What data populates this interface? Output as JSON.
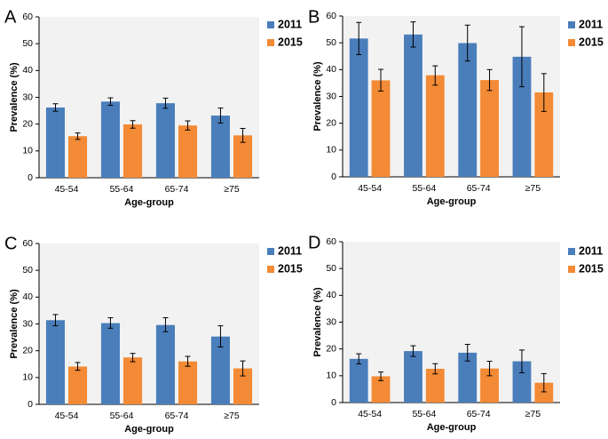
{
  "colors": {
    "2011": "#4A7EBB",
    "2015": "#F38A35"
  },
  "chart_data": [
    {
      "panel": "A",
      "type": "bar",
      "categories": [
        "45-54",
        "55-64",
        "65-74",
        "≥75"
      ],
      "xlabel": "Age-group",
      "ylabel": "Prevalence (%)",
      "ylim": [
        0,
        60
      ],
      "yticks": [
        "0",
        "10",
        "20",
        "30",
        "40",
        "50",
        "60"
      ],
      "legend": "top-right",
      "series": [
        {
          "name": "2011",
          "values": [
            26.2,
            28.4,
            27.8,
            23.2
          ],
          "err_low": [
            24.8,
            27.0,
            25.9,
            20.4
          ],
          "err_high": [
            27.6,
            29.8,
            29.7,
            26.0
          ]
        },
        {
          "name": "2015",
          "values": [
            15.5,
            19.9,
            19.5,
            15.8
          ],
          "err_low": [
            14.3,
            18.5,
            17.8,
            13.2
          ],
          "err_high": [
            16.7,
            21.3,
            21.2,
            18.4
          ]
        }
      ]
    },
    {
      "panel": "B",
      "type": "bar",
      "categories": [
        "45-54",
        "55-64",
        "65-74",
        "≥75"
      ],
      "xlabel": "Age-group",
      "ylabel": "Prevalence (%)",
      "ylim": [
        0,
        60
      ],
      "yticks": [
        "0",
        "10",
        "20",
        "30",
        "40",
        "50",
        "60"
      ],
      "legend": "top-right",
      "series": [
        {
          "name": "2011",
          "values": [
            51.6,
            53.1,
            49.9,
            44.8
          ],
          "err_low": [
            45.6,
            48.4,
            43.2,
            33.6
          ],
          "err_high": [
            57.6,
            57.8,
            56.6,
            56.0
          ]
        },
        {
          "name": "2015",
          "values": [
            36.0,
            37.9,
            36.1,
            31.5
          ],
          "err_low": [
            32.0,
            34.2,
            32.2,
            24.4
          ],
          "err_high": [
            40.1,
            41.4,
            40.0,
            38.5
          ]
        }
      ]
    },
    {
      "panel": "C",
      "type": "bar",
      "categories": [
        "45-54",
        "55-64",
        "65-74",
        "≥75"
      ],
      "xlabel": "Age-group",
      "ylabel": "Prevalence (%)",
      "ylim": [
        0,
        60
      ],
      "yticks": [
        "0",
        "10",
        "20",
        "30",
        "40",
        "50",
        "60"
      ],
      "legend": "top-right",
      "series": [
        {
          "name": "2011",
          "values": [
            31.4,
            30.3,
            29.6,
            25.3
          ],
          "err_low": [
            29.3,
            28.4,
            27.1,
            21.4
          ],
          "err_high": [
            33.5,
            32.3,
            32.3,
            29.3
          ]
        },
        {
          "name": "2015",
          "values": [
            14.1,
            17.5,
            16.0,
            13.4
          ],
          "err_low": [
            12.7,
            15.9,
            14.2,
            10.6
          ],
          "err_high": [
            15.6,
            19.0,
            17.9,
            16.2
          ]
        }
      ]
    },
    {
      "panel": "D",
      "type": "bar",
      "categories": [
        "45-54",
        "55-64",
        "65-74",
        "≥75"
      ],
      "xlabel": "Age-group",
      "ylabel": "Prevalence (%)",
      "ylim": [
        0,
        60
      ],
      "yticks": [
        "0",
        "10",
        "20",
        "30",
        "40",
        "50",
        "60"
      ],
      "legend": "top-right",
      "series": [
        {
          "name": "2011",
          "values": [
            16.3,
            19.2,
            18.6,
            15.4
          ],
          "err_low": [
            14.4,
            17.2,
            15.5,
            11.1
          ],
          "err_high": [
            18.2,
            21.2,
            21.7,
            19.6
          ]
        },
        {
          "name": "2015",
          "values": [
            9.8,
            12.6,
            12.7,
            7.4
          ],
          "err_low": [
            8.2,
            10.7,
            10.0,
            4.0
          ],
          "err_high": [
            11.4,
            14.5,
            15.4,
            10.8
          ]
        }
      ]
    }
  ]
}
